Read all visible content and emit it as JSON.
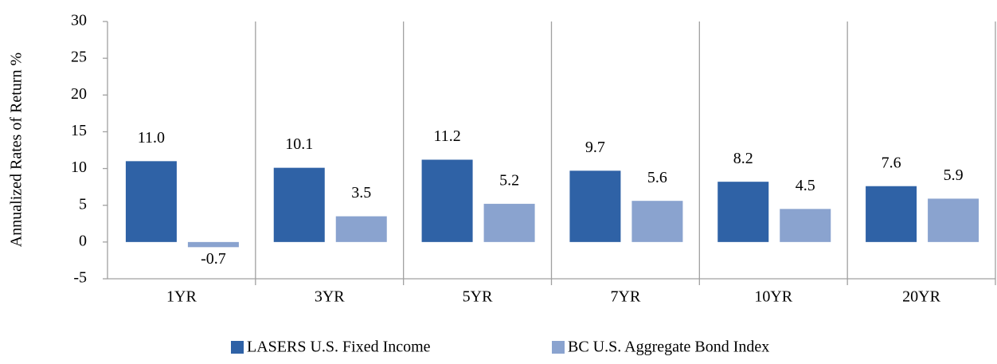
{
  "chart_data": {
    "type": "bar",
    "y_label": "Annualized Rates of Return %",
    "categories": [
      "1YR",
      "3YR",
      "5YR",
      "7YR",
      "10YR",
      "20YR"
    ],
    "series": [
      {
        "name": "LASERS U.S. Fixed Income",
        "color": "#2f62a6",
        "values": [
          11.0,
          10.1,
          11.2,
          9.7,
          8.2,
          7.6
        ],
        "value_labels": [
          "11.0",
          "10.1",
          "11.2",
          "9.7",
          "8.2",
          "7.6"
        ]
      },
      {
        "name": "BC U.S. Aggregate Bond Index",
        "color": "#8aa3cf",
        "values": [
          -0.7,
          3.5,
          5.2,
          5.6,
          4.5,
          5.9
        ],
        "value_labels": [
          "-0.7",
          "3.5",
          "5.2",
          "5.6",
          "4.5",
          "5.9"
        ]
      }
    ],
    "ylim": [
      -5,
      30
    ],
    "yticks": [
      -5,
      0,
      5,
      10,
      15,
      20,
      25,
      30
    ],
    "legend": "bottom"
  }
}
